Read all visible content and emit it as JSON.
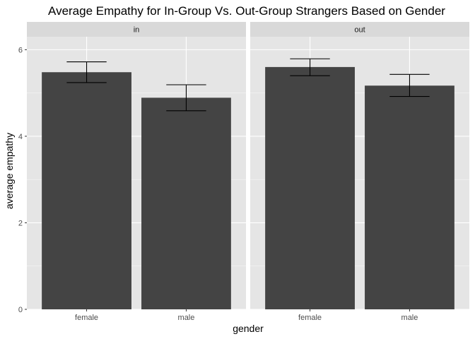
{
  "chart_data": {
    "type": "bar",
    "title": "Average Empathy for In-Group Vs. Out-Group Strangers Based on Gender",
    "xlabel": "gender",
    "ylabel": "average empathy",
    "ylim": [
      0,
      6.3
    ],
    "yticks": [
      0,
      2,
      4,
      6
    ],
    "categories": [
      "female",
      "male"
    ],
    "facets": [
      {
        "label": "in",
        "values": [
          5.48,
          4.89
        ],
        "error_low": [
          5.24,
          4.59
        ],
        "error_high": [
          5.72,
          5.19
        ]
      },
      {
        "label": "out",
        "values": [
          5.6,
          5.17
        ],
        "error_low": [
          5.4,
          4.92
        ],
        "error_high": [
          5.79,
          5.43
        ]
      }
    ],
    "grid": true,
    "legend": "none"
  },
  "colors": {
    "panel_background": "#e5e5e5",
    "grid_major": "#ffffff",
    "strip_background": "#d9d9d9",
    "bar_fill": "#444444",
    "error_bar": "#000000"
  }
}
